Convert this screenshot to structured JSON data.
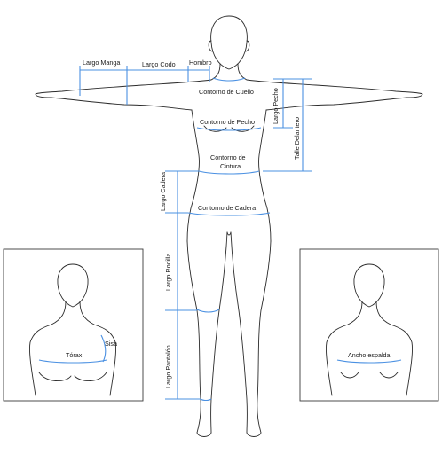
{
  "colors": {
    "measure_line": "#4a90e2",
    "outline": "#2b2b2b",
    "background": "#ffffff"
  },
  "labels": {
    "largo_manga": "Largo Manga",
    "largo_codo": "Largo Codo",
    "hombro": "Hombro",
    "contorno_cuello": "Contorno de Cuello",
    "largo_pecho": "Largo Pecho",
    "talle_delantero": "Talle Delantero",
    "contorno_pecho": "Contorno de Pecho",
    "contorno_cintura_1": "Contorno de",
    "contorno_cintura_2": "Cintura",
    "largo_cadera": "Largo Cadera",
    "contorno_cadera": "Contorno de Cadera",
    "largo_rodilla": "Largo Rodilla",
    "largo_pantalon": "Largo Pantalón",
    "torax": "Tórax",
    "sisa": "Sisa",
    "ancho_espalda": "Ancho espalda"
  }
}
